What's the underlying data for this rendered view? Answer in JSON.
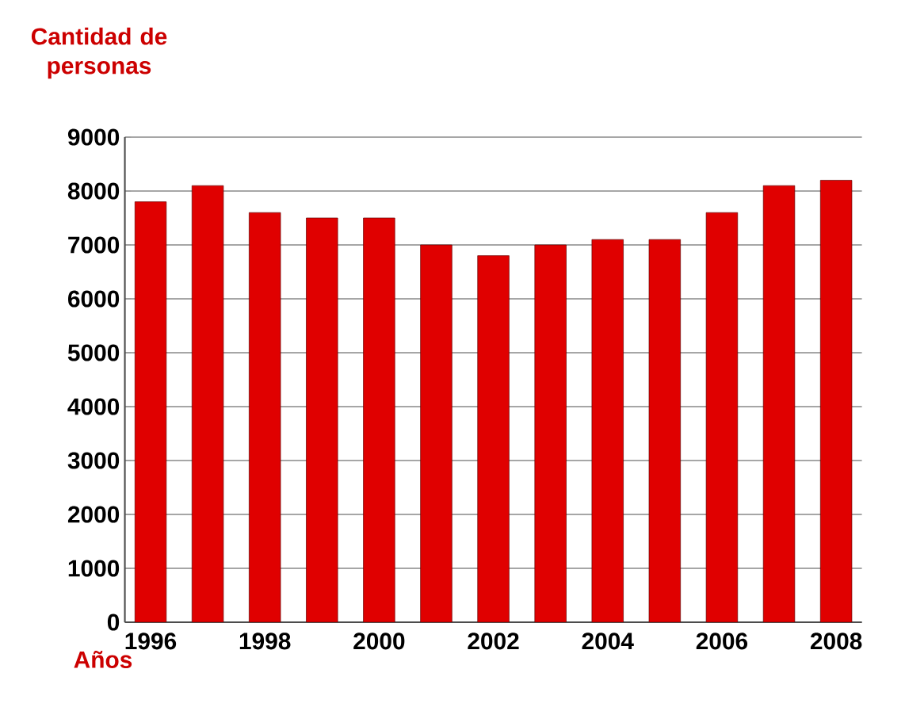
{
  "chart_data": {
    "type": "bar",
    "xlabel": "Años",
    "ylabel": "Cantidad de personas",
    "categories": [
      "1996",
      null,
      "1998",
      null,
      "2000",
      null,
      "2002",
      null,
      "2004",
      null,
      "2006",
      null,
      "2008"
    ],
    "values": [
      7800,
      8100,
      7600,
      7500,
      7500,
      7000,
      6800,
      7000,
      7100,
      7100,
      7600,
      8100,
      8200
    ],
    "color": "#e00000",
    "ylim": [
      0,
      9000
    ],
    "yticks": [
      0,
      1000,
      2000,
      3000,
      4000,
      5000,
      6000,
      7000,
      8000,
      9000
    ],
    "grid": "y"
  }
}
